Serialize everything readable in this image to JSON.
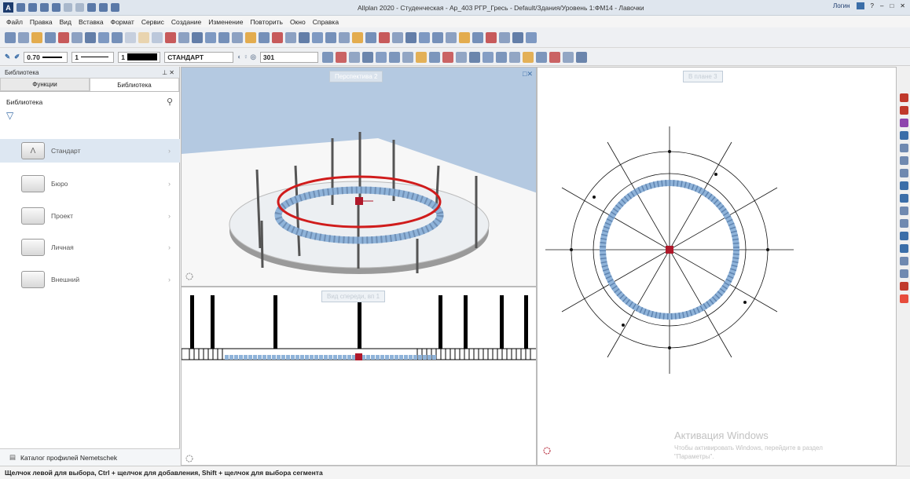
{
  "titlebar": {
    "title": "Allplan 2020 - Студенческая - Ар_403 РГР_Гресь - Default/Здания/Уровень 1:ФМ14 - Лавочки",
    "login_label": "Логин",
    "logo_letter": "A"
  },
  "menu": [
    "Файл",
    "Правка",
    "Вид",
    "Вставка",
    "Формат",
    "Сервис",
    "Создание",
    "Изменение",
    "Повторить",
    "Окно",
    "Справка"
  ],
  "toolbar2": {
    "pen_thickness": "0.70",
    "line_type": "1",
    "color_index": "1",
    "layer": "СТАНДАРТ",
    "scale_value": "301"
  },
  "library": {
    "panel_title": "Библиотека",
    "tabs": [
      "Функции",
      "Библиотека"
    ],
    "active_tab": 1,
    "heading": "Библиотека",
    "items": [
      {
        "label": "Стандарт",
        "icon": "folder-standard-icon"
      },
      {
        "label": "Бюро",
        "icon": "folder-office-icon"
      },
      {
        "label": "Проект",
        "icon": "folder-project-icon"
      },
      {
        "label": "Личная",
        "icon": "folder-private-icon"
      },
      {
        "label": "Внешний",
        "icon": "folder-external-icon"
      }
    ],
    "catalog_label": "Каталог профилей Nemetschek"
  },
  "viewports": {
    "perspective_label": "Перспектива 2",
    "plan_label": "В плане 3",
    "elevation_label": "Вид спереди, вп 1"
  },
  "watermark": {
    "title": "Активация Windows",
    "line1": "Чтобы активировать Windows, перейдите в раздел",
    "line2": "\"Параметры\"."
  },
  "status": "Щелчок левой для выбора, Ctrl + щелчок для добавления, Shift + щелчок для выбора сегмента",
  "colors": {
    "accent": "#3b6ea8",
    "marker": "#b0182a",
    "ring": "#8fb3d9"
  }
}
